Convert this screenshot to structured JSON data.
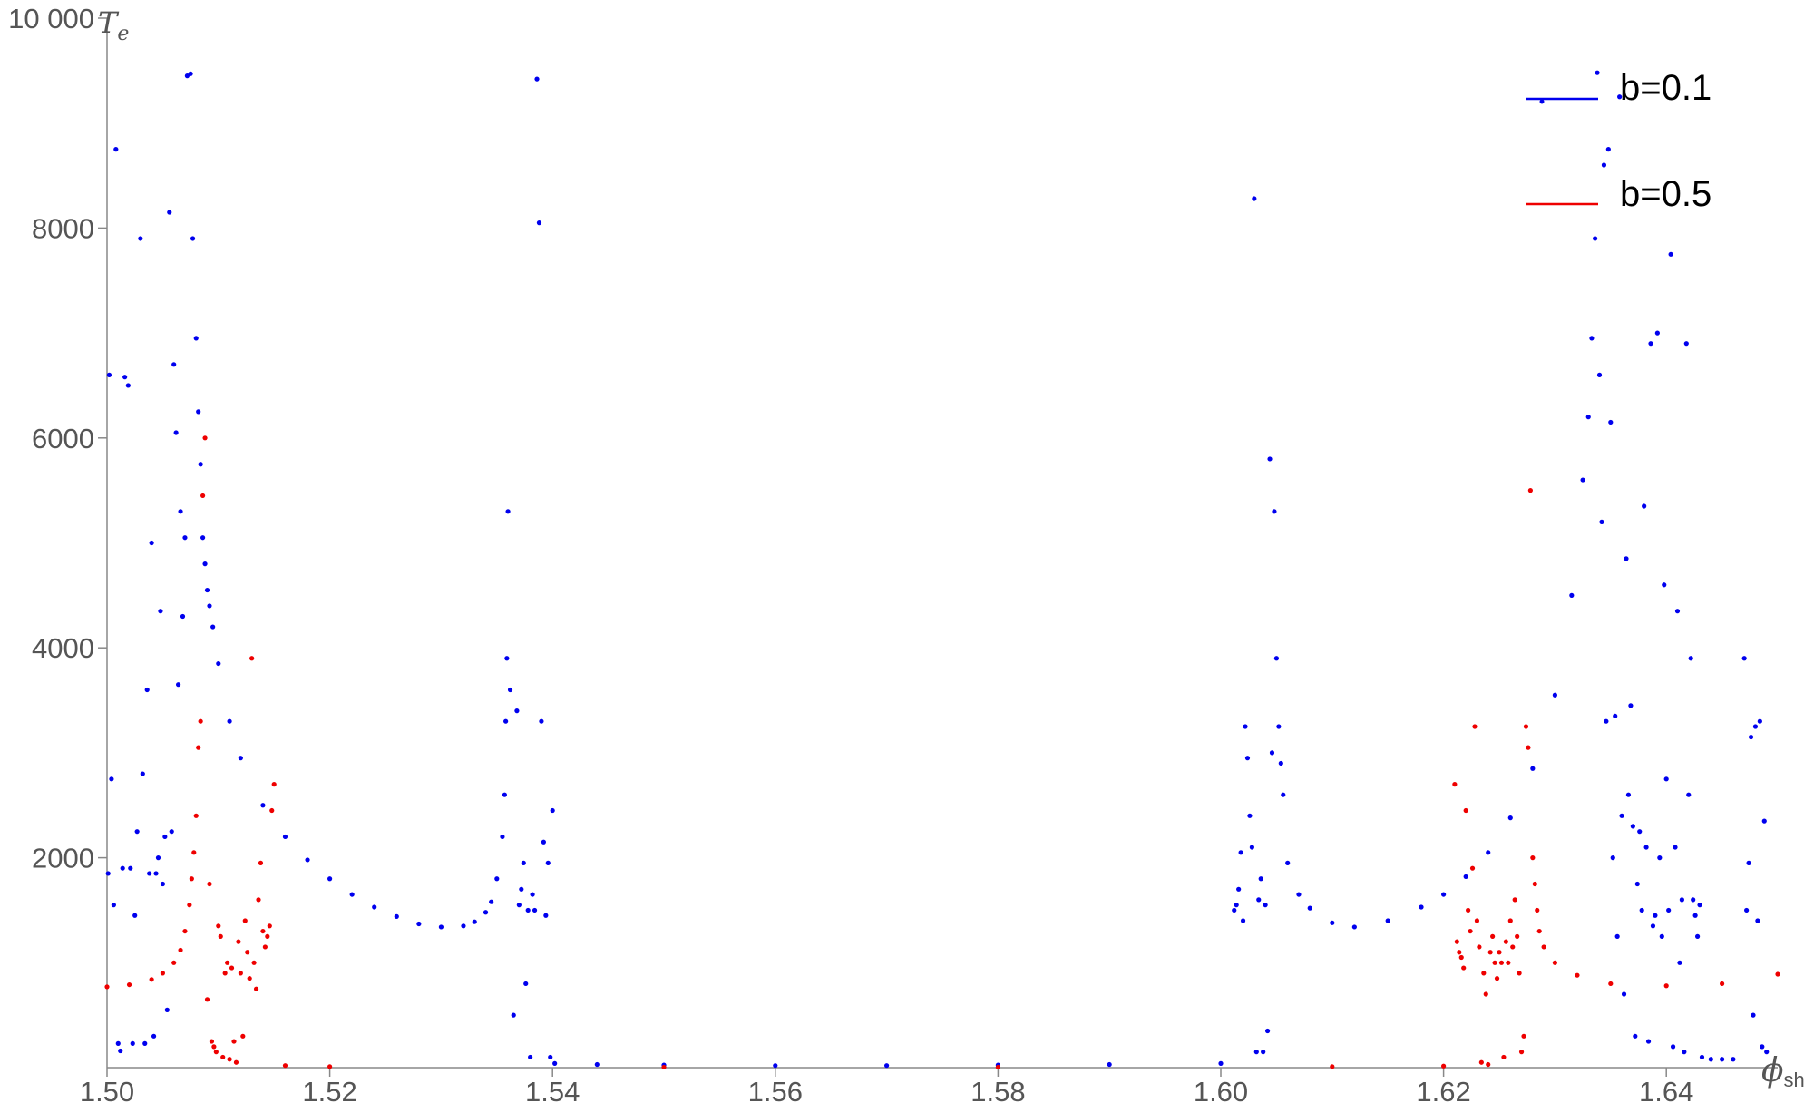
{
  "chart_data": {
    "type": "scatter",
    "xlabel": "ϕ",
    "xlabel_sub": "sh",
    "ylabel": "T",
    "ylabel_sub": "e",
    "xlim": [
      1.5,
      1.65
    ],
    "ylim": [
      0,
      10000
    ],
    "x_ticks": [
      "1.50",
      "1.52",
      "1.54",
      "1.56",
      "1.58",
      "1.60",
      "1.62",
      "1.64"
    ],
    "y_ticks": [
      "2000",
      "4000",
      "6000",
      "8000",
      "10 000"
    ],
    "grid": false,
    "legend_position": "top-right",
    "series": [
      {
        "name": "b=0.1",
        "color": "#0000ee",
        "points": [
          [
            1.5002,
            6600
          ],
          [
            1.5004,
            2750
          ],
          [
            1.5006,
            1550
          ],
          [
            1.5001,
            1850
          ],
          [
            1.5008,
            8750
          ],
          [
            1.501,
            230
          ],
          [
            1.5012,
            160
          ],
          [
            1.5014,
            1900
          ],
          [
            1.5016,
            6580
          ],
          [
            1.5019,
            6500
          ],
          [
            1.5021,
            1900
          ],
          [
            1.5023,
            230
          ],
          [
            1.5025,
            1450
          ],
          [
            1.5027,
            2250
          ],
          [
            1.503,
            7900
          ],
          [
            1.5032,
            2800
          ],
          [
            1.5034,
            230
          ],
          [
            1.5036,
            3600
          ],
          [
            1.5038,
            1850
          ],
          [
            1.504,
            5000
          ],
          [
            1.5042,
            300
          ],
          [
            1.5044,
            1850
          ],
          [
            1.5046,
            2000
          ],
          [
            1.5048,
            4350
          ],
          [
            1.505,
            1750
          ],
          [
            1.5052,
            2200
          ],
          [
            1.5054,
            550
          ],
          [
            1.5056,
            8150
          ],
          [
            1.5058,
            2250
          ],
          [
            1.506,
            6700
          ],
          [
            1.5062,
            6050
          ],
          [
            1.5064,
            3650
          ],
          [
            1.5066,
            5300
          ],
          [
            1.5068,
            4300
          ],
          [
            1.507,
            5050
          ],
          [
            1.5072,
            9450
          ],
          [
            1.5075,
            9470
          ],
          [
            1.5077,
            7900
          ],
          [
            1.508,
            6950
          ],
          [
            1.5082,
            6250
          ],
          [
            1.5084,
            5750
          ],
          [
            1.5086,
            5050
          ],
          [
            1.5088,
            4800
          ],
          [
            1.509,
            4550
          ],
          [
            1.5092,
            4400
          ],
          [
            1.5095,
            4200
          ],
          [
            1.51,
            3850
          ],
          [
            1.511,
            3300
          ],
          [
            1.512,
            2950
          ],
          [
            1.514,
            2500
          ],
          [
            1.516,
            2200
          ],
          [
            1.518,
            1980
          ],
          [
            1.52,
            1800
          ],
          [
            1.522,
            1650
          ],
          [
            1.524,
            1530
          ],
          [
            1.526,
            1440
          ],
          [
            1.528,
            1370
          ],
          [
            1.53,
            1340
          ],
          [
            1.532,
            1350
          ],
          [
            1.533,
            1390
          ],
          [
            1.534,
            1480
          ],
          [
            1.5345,
            1580
          ],
          [
            1.535,
            1800
          ],
          [
            1.5355,
            2200
          ],
          [
            1.5357,
            2600
          ],
          [
            1.5358,
            3300
          ],
          [
            1.5359,
            3900
          ],
          [
            1.536,
            5300
          ],
          [
            1.5362,
            3600
          ],
          [
            1.5365,
            500
          ],
          [
            1.5368,
            3400
          ],
          [
            1.537,
            1550
          ],
          [
            1.5372,
            1700
          ],
          [
            1.5374,
            1950
          ],
          [
            1.5376,
            800
          ],
          [
            1.5378,
            1500
          ],
          [
            1.538,
            100
          ],
          [
            1.5382,
            1650
          ],
          [
            1.5384,
            1500
          ],
          [
            1.5386,
            9420
          ],
          [
            1.5388,
            8050
          ],
          [
            1.539,
            3300
          ],
          [
            1.5392,
            2150
          ],
          [
            1.5394,
            1450
          ],
          [
            1.5396,
            1950
          ],
          [
            1.5398,
            100
          ],
          [
            1.54,
            2450
          ],
          [
            1.5402,
            40
          ],
          [
            1.544,
            30
          ],
          [
            1.55,
            25
          ],
          [
            1.56,
            20
          ],
          [
            1.57,
            20
          ],
          [
            1.58,
            25
          ],
          [
            1.59,
            30
          ],
          [
            1.6,
            40
          ],
          [
            1.6012,
            1500
          ],
          [
            1.6014,
            1550
          ],
          [
            1.6016,
            1700
          ],
          [
            1.6018,
            2050
          ],
          [
            1.602,
            1400
          ],
          [
            1.6022,
            3250
          ],
          [
            1.6024,
            2950
          ],
          [
            1.6026,
            2400
          ],
          [
            1.6028,
            2100
          ],
          [
            1.603,
            8280
          ],
          [
            1.6032,
            150
          ],
          [
            1.6034,
            1600
          ],
          [
            1.6036,
            1800
          ],
          [
            1.6038,
            150
          ],
          [
            1.604,
            1550
          ],
          [
            1.6042,
            350
          ],
          [
            1.6044,
            5800
          ],
          [
            1.6046,
            3000
          ],
          [
            1.6048,
            5300
          ],
          [
            1.605,
            3900
          ],
          [
            1.6052,
            3250
          ],
          [
            1.6054,
            2900
          ],
          [
            1.6056,
            2600
          ],
          [
            1.606,
            1950
          ],
          [
            1.607,
            1650
          ],
          [
            1.608,
            1520
          ],
          [
            1.61,
            1380
          ],
          [
            1.612,
            1340
          ],
          [
            1.615,
            1400
          ],
          [
            1.618,
            1530
          ],
          [
            1.62,
            1650
          ],
          [
            1.622,
            1820
          ],
          [
            1.624,
            2050
          ],
          [
            1.626,
            2380
          ],
          [
            1.628,
            2850
          ],
          [
            1.63,
            3550
          ],
          [
            1.6315,
            4500
          ],
          [
            1.6325,
            5600
          ],
          [
            1.633,
            6200
          ],
          [
            1.6333,
            6950
          ],
          [
            1.6336,
            7900
          ],
          [
            1.6338,
            9480
          ],
          [
            1.634,
            6600
          ],
          [
            1.6342,
            5200
          ],
          [
            1.6344,
            8600
          ],
          [
            1.6346,
            3300
          ],
          [
            1.6348,
            8750
          ],
          [
            1.635,
            6150
          ],
          [
            1.6352,
            2000
          ],
          [
            1.6354,
            3350
          ],
          [
            1.6356,
            1250
          ],
          [
            1.6358,
            9250
          ],
          [
            1.636,
            2400
          ],
          [
            1.6362,
            700
          ],
          [
            1.6364,
            4850
          ],
          [
            1.6366,
            2600
          ],
          [
            1.6368,
            3450
          ],
          [
            1.637,
            2300
          ],
          [
            1.6372,
            300
          ],
          [
            1.6374,
            1750
          ],
          [
            1.6376,
            2250
          ],
          [
            1.6378,
            1500
          ],
          [
            1.638,
            5350
          ],
          [
            1.6382,
            2100
          ],
          [
            1.6384,
            250
          ],
          [
            1.6386,
            6900
          ],
          [
            1.6388,
            1350
          ],
          [
            1.639,
            1450
          ],
          [
            1.6392,
            7000
          ],
          [
            1.6394,
            2000
          ],
          [
            1.6396,
            1250
          ],
          [
            1.6398,
            4600
          ],
          [
            1.64,
            2750
          ],
          [
            1.6402,
            1500
          ],
          [
            1.6404,
            7750
          ],
          [
            1.6406,
            200
          ],
          [
            1.6408,
            2100
          ],
          [
            1.641,
            4350
          ],
          [
            1.6412,
            1000
          ],
          [
            1.6414,
            1600
          ],
          [
            1.6416,
            150
          ],
          [
            1.6418,
            6900
          ],
          [
            1.642,
            2600
          ],
          [
            1.6422,
            3900
          ],
          [
            1.6424,
            1600
          ],
          [
            1.6426,
            1450
          ],
          [
            1.6428,
            1250
          ],
          [
            1.643,
            1550
          ],
          [
            1.6432,
            100
          ],
          [
            1.644,
            80
          ],
          [
            1.645,
            80
          ],
          [
            1.646,
            80
          ],
          [
            1.647,
            3900
          ],
          [
            1.6472,
            1500
          ],
          [
            1.6474,
            1950
          ],
          [
            1.6476,
            3150
          ],
          [
            1.6478,
            500
          ],
          [
            1.648,
            3250
          ],
          [
            1.6482,
            1400
          ],
          [
            1.6484,
            3300
          ],
          [
            1.6486,
            200
          ],
          [
            1.6488,
            2350
          ],
          [
            1.649,
            150
          ]
        ]
      },
      {
        "name": "b=0.5",
        "color": "#ee0000",
        "points": [
          [
            1.5,
            770
          ],
          [
            1.502,
            790
          ],
          [
            1.504,
            840
          ],
          [
            1.505,
            900
          ],
          [
            1.506,
            1000
          ],
          [
            1.5066,
            1120
          ],
          [
            1.507,
            1300
          ],
          [
            1.5074,
            1550
          ],
          [
            1.5076,
            1800
          ],
          [
            1.5078,
            2050
          ],
          [
            1.508,
            2400
          ],
          [
            1.5082,
            3050
          ],
          [
            1.5084,
            3300
          ],
          [
            1.5086,
            5450
          ],
          [
            1.5088,
            6000
          ],
          [
            1.509,
            650
          ],
          [
            1.5092,
            1750
          ],
          [
            1.5094,
            250
          ],
          [
            1.5096,
            200
          ],
          [
            1.5098,
            150
          ],
          [
            1.51,
            1350
          ],
          [
            1.5102,
            1250
          ],
          [
            1.5104,
            100
          ],
          [
            1.5106,
            900
          ],
          [
            1.5108,
            1000
          ],
          [
            1.511,
            80
          ],
          [
            1.5112,
            950
          ],
          [
            1.5114,
            250
          ],
          [
            1.5116,
            50
          ],
          [
            1.5118,
            1200
          ],
          [
            1.512,
            900
          ],
          [
            1.5122,
            300
          ],
          [
            1.5124,
            1400
          ],
          [
            1.5126,
            1100
          ],
          [
            1.5128,
            850
          ],
          [
            1.513,
            3900
          ],
          [
            1.5132,
            1000
          ],
          [
            1.5134,
            750
          ],
          [
            1.5136,
            1600
          ],
          [
            1.5138,
            1950
          ],
          [
            1.514,
            1300
          ],
          [
            1.5142,
            1150
          ],
          [
            1.5144,
            1250
          ],
          [
            1.5146,
            1350
          ],
          [
            1.5148,
            2450
          ],
          [
            1.515,
            2700
          ],
          [
            1.516,
            20
          ],
          [
            1.52,
            10
          ],
          [
            1.55,
            5
          ],
          [
            1.58,
            5
          ],
          [
            1.61,
            10
          ],
          [
            1.62,
            15
          ],
          [
            1.621,
            2700
          ],
          [
            1.6212,
            1200
          ],
          [
            1.6214,
            1100
          ],
          [
            1.6216,
            1050
          ],
          [
            1.6218,
            950
          ],
          [
            1.622,
            2450
          ],
          [
            1.6222,
            1500
          ],
          [
            1.6224,
            1300
          ],
          [
            1.6226,
            1900
          ],
          [
            1.6228,
            3250
          ],
          [
            1.623,
            1400
          ],
          [
            1.6232,
            1150
          ],
          [
            1.6234,
            50
          ],
          [
            1.6236,
            900
          ],
          [
            1.6238,
            700
          ],
          [
            1.624,
            30
          ],
          [
            1.6242,
            1100
          ],
          [
            1.6244,
            1250
          ],
          [
            1.6246,
            1000
          ],
          [
            1.6248,
            850
          ],
          [
            1.625,
            1100
          ],
          [
            1.6252,
            1000
          ],
          [
            1.6254,
            100
          ],
          [
            1.6256,
            1200
          ],
          [
            1.6258,
            1000
          ],
          [
            1.626,
            1400
          ],
          [
            1.6262,
            1150
          ],
          [
            1.6264,
            1600
          ],
          [
            1.6266,
            1250
          ],
          [
            1.6268,
            900
          ],
          [
            1.627,
            150
          ],
          [
            1.6272,
            300
          ],
          [
            1.6274,
            3250
          ],
          [
            1.6276,
            3050
          ],
          [
            1.6278,
            5500
          ],
          [
            1.628,
            2000
          ],
          [
            1.6282,
            1750
          ],
          [
            1.6284,
            1500
          ],
          [
            1.6286,
            1300
          ],
          [
            1.629,
            1150
          ],
          [
            1.63,
            1000
          ],
          [
            1.632,
            880
          ],
          [
            1.635,
            800
          ],
          [
            1.64,
            780
          ],
          [
            1.645,
            800
          ],
          [
            1.65,
            890
          ]
        ]
      }
    ]
  }
}
